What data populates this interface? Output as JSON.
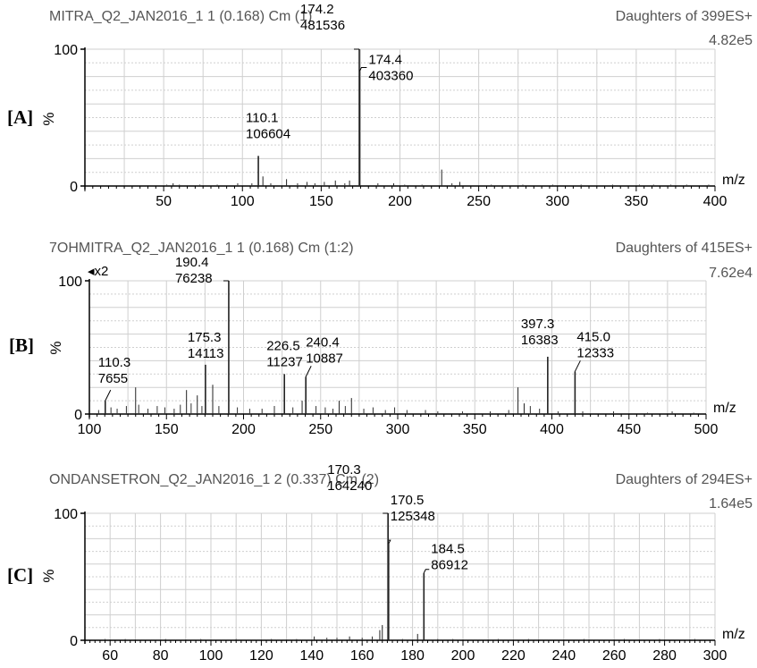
{
  "chart_data": [
    {
      "type": "line",
      "panel_label": "[A]",
      "title": "MITRA_Q2_JAN2016_1 1 (0.168) Cm (1)",
      "header_right": "Daughters of 399ES+",
      "max_intensity": "4.82e5",
      "xlabel": "m/z",
      "ylabel": "%",
      "xlim": [
        0,
        400
      ],
      "ylim": [
        0,
        100
      ],
      "xticks": [
        50,
        100,
        150,
        200,
        250,
        300,
        350,
        400
      ],
      "yticks": [
        0,
        100
      ],
      "grid": true,
      "peaks": [
        {
          "mz": 174.2,
          "rel": 100,
          "label": "174.2",
          "intensity": "481536"
        },
        {
          "mz": 174.4,
          "rel": 84,
          "label": "174.4",
          "intensity": "403360"
        },
        {
          "mz": 110.1,
          "rel": 22,
          "label": "110.1",
          "intensity": "106604"
        },
        {
          "mz": 226.5,
          "rel": 12
        },
        {
          "mz": 113,
          "rel": 7
        },
        {
          "mz": 128,
          "rel": 5
        },
        {
          "mz": 159,
          "rel": 4
        },
        {
          "mz": 168,
          "rel": 4
        },
        {
          "mz": 56,
          "rel": 2
        },
        {
          "mz": 196,
          "rel": 2
        },
        {
          "mz": 238,
          "rel": 3
        }
      ],
      "noise": [
        [
          52,
          1
        ],
        [
          60,
          1
        ],
        [
          73,
          1
        ],
        [
          84,
          1
        ],
        [
          97,
          2
        ],
        [
          106,
          2
        ],
        [
          118,
          2
        ],
        [
          135,
          2
        ],
        [
          141,
          3
        ],
        [
          146,
          2
        ],
        [
          152,
          3
        ],
        [
          165,
          2
        ],
        [
          186,
          2
        ],
        [
          203,
          1
        ],
        [
          214,
          1
        ],
        [
          233,
          2
        ],
        [
          258,
          1
        ],
        [
          278,
          1
        ],
        [
          297,
          1
        ],
        [
          315,
          1
        ],
        [
          335,
          1
        ],
        [
          352,
          1
        ],
        [
          361,
          1
        ],
        [
          372,
          1
        ],
        [
          382,
          1
        ],
        [
          396,
          1
        ]
      ]
    },
    {
      "type": "line",
      "panel_label": "[B]",
      "title": "7OHMITRA_Q2_JAN2016_1 1 (0.168) Cm (1:2)",
      "header_right": "Daughters of 415ES+",
      "max_intensity": "7.62e4",
      "zoom_marker": "x2",
      "xlabel": "m/z",
      "ylabel": "%",
      "xlim": [
        100,
        500
      ],
      "ylim": [
        0,
        100
      ],
      "xticks": [
        100,
        150,
        200,
        250,
        300,
        350,
        400,
        450,
        500
      ],
      "yticks": [
        0,
        100
      ],
      "grid": true,
      "peaks": [
        {
          "mz": 190.4,
          "rel": 100,
          "label": "190.4",
          "intensity": "76238"
        },
        {
          "mz": 175.3,
          "rel": 37,
          "label": "175.3",
          "intensity": "14113"
        },
        {
          "mz": 226.5,
          "rel": 30,
          "label": "226.5",
          "intensity": "11237"
        },
        {
          "mz": 240.4,
          "rel": 28,
          "label": "240.4",
          "intensity": "10887"
        },
        {
          "mz": 397.3,
          "rel": 43,
          "label": "397.3",
          "intensity": "16383"
        },
        {
          "mz": 415.0,
          "rel": 32,
          "label": "415.0",
          "intensity": "12333"
        },
        {
          "mz": 110.3,
          "rel": 10,
          "label": "110.3",
          "intensity": "7655"
        },
        {
          "mz": 130,
          "rel": 20
        },
        {
          "mz": 163,
          "rel": 18
        },
        {
          "mz": 170,
          "rel": 14
        },
        {
          "mz": 180,
          "rel": 22
        },
        {
          "mz": 238,
          "rel": 10
        },
        {
          "mz": 262,
          "rel": 10
        },
        {
          "mz": 270,
          "rel": 12
        },
        {
          "mz": 378,
          "rel": 20
        },
        {
          "mz": 382,
          "rel": 8
        }
      ],
      "noise": [
        [
          106,
          3
        ],
        [
          114,
          5
        ],
        [
          118,
          4
        ],
        [
          124,
          6
        ],
        [
          132,
          7
        ],
        [
          138,
          4
        ],
        [
          144,
          6
        ],
        [
          149,
          5
        ],
        [
          155,
          4
        ],
        [
          159,
          7
        ],
        [
          166,
          8
        ],
        [
          173,
          6
        ],
        [
          184,
          6
        ],
        [
          196,
          5
        ],
        [
          204,
          4
        ],
        [
          212,
          4
        ],
        [
          220,
          6
        ],
        [
          232,
          5
        ],
        [
          247,
          6
        ],
        [
          253,
          5
        ],
        [
          258,
          4
        ],
        [
          266,
          6
        ],
        [
          278,
          4
        ],
        [
          284,
          5
        ],
        [
          292,
          3
        ],
        [
          298,
          5
        ],
        [
          306,
          3
        ],
        [
          318,
          3
        ],
        [
          326,
          2
        ],
        [
          342,
          2
        ],
        [
          360,
          2
        ],
        [
          372,
          3
        ],
        [
          386,
          6
        ],
        [
          392,
          4
        ],
        [
          404,
          2
        ],
        [
          420,
          2
        ],
        [
          440,
          2
        ],
        [
          462,
          1
        ],
        [
          478,
          2
        ],
        [
          492,
          1
        ]
      ]
    },
    {
      "type": "line",
      "panel_label": "[C]",
      "title": "ONDANSETRON_Q2_JAN2016_1 2 (0.337) Cm (2)",
      "header_right": "Daughters of 294ES+",
      "max_intensity": "1.64e5",
      "xlabel": "m/z",
      "ylabel": "%",
      "xlim": [
        50,
        300
      ],
      "ylim": [
        0,
        100
      ],
      "xticks": [
        60,
        80,
        100,
        120,
        140,
        160,
        180,
        200,
        220,
        240,
        260,
        280,
        300
      ],
      "yticks": [
        0,
        100
      ],
      "grid": true,
      "peaks": [
        {
          "mz": 170.3,
          "rel": 100,
          "label": "170.3",
          "intensity": "164240"
        },
        {
          "mz": 170.5,
          "rel": 76,
          "label": "170.5",
          "intensity": "125348"
        },
        {
          "mz": 184.5,
          "rel": 53,
          "label": "184.5",
          "intensity": "86912"
        },
        {
          "mz": 168,
          "rel": 12
        },
        {
          "mz": 167,
          "rel": 8
        },
        {
          "mz": 182,
          "rel": 5
        },
        {
          "mz": 141,
          "rel": 3
        },
        {
          "mz": 155,
          "rel": 3
        }
      ],
      "noise": [
        [
          58,
          1
        ],
        [
          66,
          1
        ],
        [
          82,
          1
        ],
        [
          96,
          1
        ],
        [
          110,
          1
        ],
        [
          124,
          1
        ],
        [
          134,
          1
        ],
        [
          146,
          2
        ],
        [
          150,
          2
        ],
        [
          160,
          2
        ],
        [
          164,
          3
        ],
        [
          176,
          1
        ],
        [
          190,
          1
        ],
        [
          196,
          1
        ],
        [
          214,
          1
        ],
        [
          226,
          1
        ],
        [
          248,
          1
        ],
        [
          264,
          1
        ],
        [
          278,
          1
        ],
        [
          292,
          1
        ]
      ]
    }
  ]
}
